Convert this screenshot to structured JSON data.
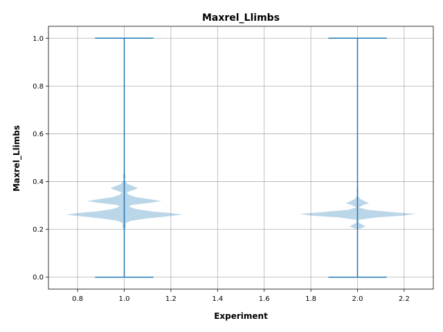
{
  "chart_data": {
    "type": "violin",
    "title": "Maxrel_Llimbs",
    "xlabel": "Experiment",
    "ylabel": "Maxrel_Llimbs",
    "xlim": [
      0.675,
      2.325
    ],
    "ylim": [
      -0.05,
      1.05
    ],
    "x_ticks": [
      0.8,
      1.0,
      1.2,
      1.4,
      1.6,
      1.8,
      2.0,
      2.2
    ],
    "x_tick_labels": [
      "0.8",
      "1.0",
      "1.2",
      "1.4",
      "1.6",
      "1.8",
      "2.0",
      "2.2"
    ],
    "y_ticks": [
      0.0,
      0.2,
      0.4,
      0.6,
      0.8,
      1.0
    ],
    "y_tick_labels": [
      "0.0",
      "0.2",
      "0.4",
      "0.6",
      "0.8",
      "1.0"
    ],
    "grid": true,
    "colors": {
      "body": "#1f77b4",
      "lines": "#1f77b4"
    },
    "violins": [
      {
        "position": 1.0,
        "min": 0.0,
        "max": 1.0,
        "cap_halfwidth": 0.125,
        "profile": [
          [
            0.0,
            0.0
          ],
          [
            0.2,
            0.0
          ],
          [
            0.205,
            0.005
          ],
          [
            0.215,
            0.008
          ],
          [
            0.225,
            0.005
          ],
          [
            0.235,
            0.025
          ],
          [
            0.245,
            0.09
          ],
          [
            0.255,
            0.19
          ],
          [
            0.262,
            0.25
          ],
          [
            0.268,
            0.2
          ],
          [
            0.275,
            0.12
          ],
          [
            0.285,
            0.05
          ],
          [
            0.295,
            0.02
          ],
          [
            0.302,
            0.03
          ],
          [
            0.31,
            0.1
          ],
          [
            0.318,
            0.16
          ],
          [
            0.325,
            0.12
          ],
          [
            0.335,
            0.05
          ],
          [
            0.345,
            0.02
          ],
          [
            0.355,
            0.01
          ],
          [
            0.365,
            0.04
          ],
          [
            0.372,
            0.06
          ],
          [
            0.38,
            0.04
          ],
          [
            0.39,
            0.015
          ],
          [
            0.4,
            0.005
          ],
          [
            0.41,
            0.002
          ],
          [
            0.42,
            0.006
          ],
          [
            0.43,
            0.004
          ],
          [
            0.44,
            0.0
          ],
          [
            1.0,
            0.0
          ]
        ]
      },
      {
        "position": 2.0,
        "min": 0.0,
        "max": 1.0,
        "cap_halfwidth": 0.125,
        "profile": [
          [
            0.0,
            0.0
          ],
          [
            0.2,
            0.0
          ],
          [
            0.205,
            0.015
          ],
          [
            0.212,
            0.035
          ],
          [
            0.22,
            0.02
          ],
          [
            0.228,
            0.005
          ],
          [
            0.24,
            0.005
          ],
          [
            0.25,
            0.08
          ],
          [
            0.258,
            0.2
          ],
          [
            0.265,
            0.25
          ],
          [
            0.272,
            0.15
          ],
          [
            0.282,
            0.04
          ],
          [
            0.292,
            0.005
          ],
          [
            0.3,
            0.02
          ],
          [
            0.31,
            0.05
          ],
          [
            0.318,
            0.03
          ],
          [
            0.328,
            0.01
          ],
          [
            0.34,
            0.003
          ],
          [
            0.355,
            0.003
          ],
          [
            0.365,
            0.004
          ],
          [
            0.375,
            0.0
          ],
          [
            1.0,
            0.0
          ]
        ]
      }
    ]
  }
}
